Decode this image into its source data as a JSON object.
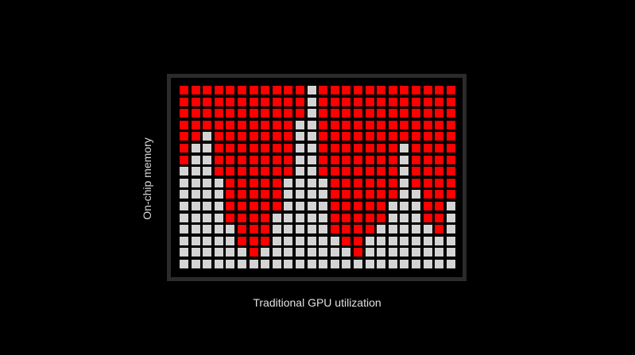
{
  "labels": {
    "y_axis": "On-chip memory",
    "x_axis": "Traditional GPU utilization"
  },
  "colors": {
    "active": "#ff0000",
    "inactive": "#d4d4d4",
    "frame": "#2b2b2b",
    "background": "#000000"
  },
  "grid": {
    "legend": "R = red cell, G = gray cell",
    "rows": [
      "RRRRRRRRRRRGRRRRRRRRRRRR",
      "RRRRRRRRRRRGRRRRRRRRRRRR",
      "RRRRRRRRRRRGRRRRRRRRRRRR",
      "RRRRRRRRRRGGRRRRRRRRRRRR",
      "RRGRRRRRRRGGRRRRRRRRRRRR",
      "RGGRRRRRRRGGRRRRRRRGRRRR",
      "RGGRRRRRRRGGRRRRRRRGRRRR",
      "GGGRRRRRRRGGRRRRRRRGRRRR",
      "GGGGRRRRRGGGGRRRRRRGRRRR",
      "GGGGRRRRRGGGGRRRRRRGGRRR",
      "GGGGRRRRRGGGGRRRRRGGGRRG",
      "GGGGRRRRGGGGGRRRRRGGGRRG",
      "GGGGGRRRGGGGGRRRRGGGGGRG",
      "GGGGGRRRGGGGGGRRGGGGGGGG",
      "GGGGGGRGGGGGGGGRGGGGGGGG",
      "GGGGGGGGGGGGGGGGGGGGGGGG"
    ]
  }
}
